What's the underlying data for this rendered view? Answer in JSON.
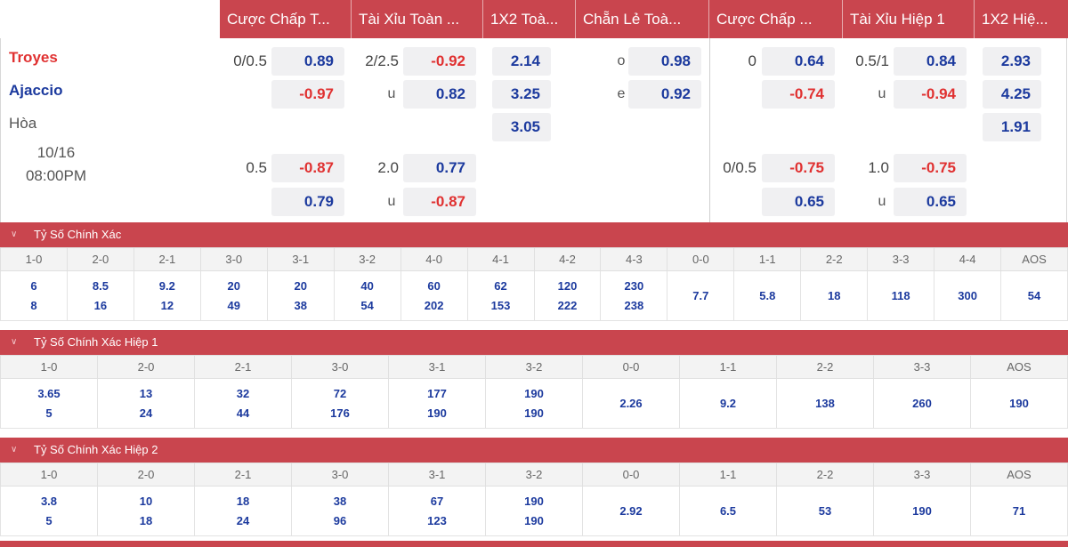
{
  "header_tabs": [
    "Cược Chấp T...",
    "Tài Xỉu Toàn ...",
    "1X2 Toà...",
    "Chẵn Lẻ Toà...",
    "Cược Chấp ...",
    "Tài Xỉu Hiệp 1",
    "1X2 Hiệ..."
  ],
  "match": {
    "home": "Troyes",
    "away": "Ajaccio",
    "draw": "Hòa",
    "date": "10/16",
    "time": "08:00PM"
  },
  "odds": {
    "ah_ft": {
      "line1": "0/0.5",
      "h1": "0.89",
      "a1": "-0.97",
      "line2": "0.5",
      "h2": "-0.87",
      "a2": "0.79"
    },
    "ou_ft": {
      "line1": "2/2.5",
      "over1": "-0.92",
      "u1_label": "u",
      "under1": "0.82",
      "line2": "2.0",
      "over2": "0.77",
      "u2_label": "u",
      "under2": "-0.87"
    },
    "x12_ft": {
      "home": "2.14",
      "away": "3.25",
      "draw": "3.05"
    },
    "oe_ft": {
      "o_label": "o",
      "odd": "0.98",
      "e_label": "e",
      "even": "0.92"
    },
    "ah_h1": {
      "line1": "0",
      "h1": "0.64",
      "a1": "-0.74",
      "line2": "0/0.5",
      "h2": "-0.75",
      "a2": "0.65"
    },
    "ou_h1": {
      "line1": "0.5/1",
      "over1": "0.84",
      "u1_label": "u",
      "under1": "-0.94",
      "line2": "1.0",
      "over2": "-0.75",
      "u2_label": "u",
      "under2": "0.65"
    },
    "x12_h1": {
      "home": "2.93",
      "away": "4.25",
      "draw": "1.91"
    }
  },
  "sections": [
    {
      "title": "Tỷ Số Chính Xác",
      "columns": [
        "1-0",
        "2-0",
        "2-1",
        "3-0",
        "3-1",
        "3-2",
        "4-0",
        "4-1",
        "4-2",
        "4-3",
        "0-0",
        "1-1",
        "2-2",
        "3-3",
        "4-4",
        "AOS"
      ],
      "home_vals": [
        "6",
        "8.5",
        "9.2",
        "20",
        "20",
        "40",
        "60",
        "62",
        "120",
        "230"
      ],
      "away_vals": [
        "8",
        "16",
        "12",
        "49",
        "38",
        "54",
        "202",
        "153",
        "222",
        "238"
      ],
      "single_vals": [
        "7.7",
        "5.8",
        "18",
        "118",
        "300",
        "54"
      ]
    },
    {
      "title": "Tỷ Số Chính Xác Hiệp 1",
      "columns": [
        "1-0",
        "2-0",
        "2-1",
        "3-0",
        "3-1",
        "3-2",
        "0-0",
        "1-1",
        "2-2",
        "3-3",
        "AOS"
      ],
      "home_vals": [
        "3.65",
        "13",
        "32",
        "72",
        "177",
        "190"
      ],
      "away_vals": [
        "5",
        "24",
        "44",
        "176",
        "190",
        "190"
      ],
      "single_vals": [
        "2.26",
        "9.2",
        "138",
        "260",
        "190"
      ]
    },
    {
      "title": "Tỷ Số Chính Xác Hiệp 2",
      "columns": [
        "1-0",
        "2-0",
        "2-1",
        "3-0",
        "3-1",
        "3-2",
        "0-0",
        "1-1",
        "2-2",
        "3-3",
        "AOS"
      ],
      "home_vals": [
        "3.8",
        "10",
        "18",
        "38",
        "67",
        "190"
      ],
      "away_vals": [
        "5",
        "18",
        "24",
        "96",
        "123",
        "190"
      ],
      "single_vals": [
        "2.92",
        "6.5",
        "53",
        "190",
        "71"
      ]
    }
  ]
}
